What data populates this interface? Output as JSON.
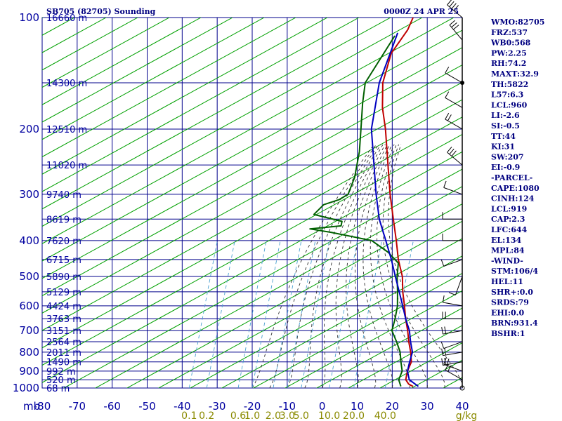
{
  "header": {
    "station": "SB705 (82705) Sounding",
    "datetime": "0000Z 24 APR 25"
  },
  "indices": [
    "WMO:82705",
    "FRZ:537",
    "WB0:568",
    "PW:2.25",
    "RH:74.2",
    "MAXT:32.9",
    "TH:5822",
    "L57:6.3",
    "LCL:960",
    "LI:-2.6",
    "SI:-0.5",
    "TT:44",
    "KI:31",
    "SW:207",
    "EI:-0.9",
    "-PARCEL-",
    "CAPE:1080",
    "CINH:124",
    "LCL:919",
    "CAP:2.3",
    "LFC:644",
    "EL:134",
    "MPL:84",
    "-WIND-",
    "STM:106/4",
    "HEL:11",
    "SHR+:0.0",
    "SRDS:79",
    "EHI:0.0",
    "BRN:931.4",
    "BSHR:1"
  ],
  "axis_labels": {
    "pressure_unit": "mb",
    "mixing_unit": "g/kg"
  },
  "colors": {
    "grid": "#00008b",
    "dry_adiabat": "#00a000",
    "moist_adiabat": "#303030",
    "mixing_ratio": "#4aa0d0",
    "temperature": "#c00000",
    "dewpoint": "#006000",
    "parcel": "#0000c0",
    "wind": "#000000",
    "mixing_label": "#8a8a00"
  },
  "chart_data": {
    "type": "line",
    "x_scale": "linear",
    "y_scale": "log",
    "xlim": [
      -80,
      40
    ],
    "ylim": [
      1000,
      100
    ],
    "xlabel": "",
    "ylabel": "",
    "pressure_ticks": [
      100,
      200,
      300,
      400,
      500,
      600,
      700,
      800,
      900,
      1000
    ],
    "temperature_ticks": [
      -80,
      -70,
      -60,
      -50,
      -40,
      -30,
      -20,
      -10,
      0,
      10,
      20,
      30,
      40
    ],
    "height_ticks": [
      {
        "p": 100,
        "label": "16660 m"
      },
      {
        "p": 150,
        "label": "14300 m"
      },
      {
        "p": 200,
        "label": "12510 m"
      },
      {
        "p": 250,
        "label": "11020 m"
      },
      {
        "p": 300,
        "label": "9740 m"
      },
      {
        "p": 350,
        "label": "8619 m"
      },
      {
        "p": 400,
        "label": "7620 m"
      },
      {
        "p": 450,
        "label": "6715 m"
      },
      {
        "p": 500,
        "label": "5890 m"
      },
      {
        "p": 550,
        "label": "5129 m"
      },
      {
        "p": 600,
        "label": "4424 m"
      },
      {
        "p": 650,
        "label": "3763 m"
      },
      {
        "p": 700,
        "label": "3151 m"
      },
      {
        "p": 750,
        "label": "2564 m"
      },
      {
        "p": 800,
        "label": "2011 m"
      },
      {
        "p": 850,
        "label": "1490 m"
      },
      {
        "p": 900,
        "label": "992 m"
      },
      {
        "p": 950,
        "label": "520 m"
      },
      {
        "p": 1000,
        "label": "68 m"
      }
    ],
    "mixing_ratio_labels": [
      {
        "x": -38,
        "label": "0.1"
      },
      {
        "x": -33,
        "label": "0.2"
      },
      {
        "x": -24,
        "label": "0.6"
      },
      {
        "x": -20,
        "label": "1.0"
      },
      {
        "x": -14,
        "label": "2.0"
      },
      {
        "x": -10,
        "label": "3.0"
      },
      {
        "x": -6,
        "label": "5.0"
      },
      {
        "x": 2,
        "label": "10.0"
      },
      {
        "x": 9,
        "label": "20.0"
      },
      {
        "x": 18,
        "label": "40.0"
      }
    ],
    "series": [
      {
        "name": "",
        "role": "temperature",
        "points": [
          [
            100,
            -80
          ],
          [
            108,
            -78
          ],
          [
            125,
            -76
          ],
          [
            150,
            -70
          ],
          [
            175,
            -63
          ],
          [
            200,
            -56
          ],
          [
            250,
            -45
          ],
          [
            300,
            -36
          ],
          [
            350,
            -28
          ],
          [
            400,
            -21
          ],
          [
            450,
            -15
          ],
          [
            500,
            -9
          ],
          [
            550,
            -4.5
          ],
          [
            600,
            0
          ],
          [
            650,
            4
          ],
          [
            700,
            8
          ],
          [
            750,
            11.5
          ],
          [
            800,
            15
          ],
          [
            850,
            18
          ],
          [
            900,
            19.5
          ],
          [
            925,
            20.5
          ],
          [
            950,
            21.5
          ],
          [
            975,
            23.5
          ],
          [
            990,
            25.5
          ]
        ]
      },
      {
        "name": "",
        "role": "dewpoint",
        "points": [
          [
            112,
            -80
          ],
          [
            150,
            -75
          ],
          [
            170,
            -70
          ],
          [
            200,
            -63
          ],
          [
            230,
            -57
          ],
          [
            270,
            -51
          ],
          [
            300,
            -48
          ],
          [
            310,
            -49
          ],
          [
            320,
            -52
          ],
          [
            340,
            -52
          ],
          [
            355,
            -42
          ],
          [
            365,
            -41
          ],
          [
            372,
            -49
          ],
          [
            380,
            -42
          ],
          [
            400,
            -28
          ],
          [
            430,
            -20
          ],
          [
            460,
            -14
          ],
          [
            500,
            -10.5
          ],
          [
            550,
            -6
          ],
          [
            600,
            -2
          ],
          [
            650,
            1
          ],
          [
            700,
            3.5
          ],
          [
            750,
            8
          ],
          [
            800,
            12
          ],
          [
            850,
            15
          ],
          [
            900,
            18
          ],
          [
            950,
            19.5
          ],
          [
            990,
            22
          ]
        ]
      },
      {
        "name": "",
        "role": "parcel",
        "points": [
          [
            110,
            -80
          ],
          [
            150,
            -71
          ],
          [
            200,
            -60
          ],
          [
            250,
            -49
          ],
          [
            300,
            -40
          ],
          [
            350,
            -32
          ],
          [
            400,
            -24
          ],
          [
            450,
            -17
          ],
          [
            500,
            -11
          ],
          [
            550,
            -5.5
          ],
          [
            600,
            -0.5
          ],
          [
            650,
            4
          ],
          [
            700,
            8.5
          ],
          [
            750,
            12
          ],
          [
            800,
            15.5
          ],
          [
            850,
            17.5
          ],
          [
            900,
            19.5
          ],
          [
            950,
            22.5
          ],
          [
            990,
            27
          ]
        ]
      }
    ],
    "wind_barbs": [
      {
        "p": 100,
        "dir": 310,
        "spd": 35
      },
      {
        "p": 115,
        "dir": 320,
        "spd": 25
      },
      {
        "p": 150,
        "dir": 300,
        "spd": 10
      },
      {
        "p": 175,
        "dir": 300,
        "spd": 10
      },
      {
        "p": 200,
        "dir": 300,
        "spd": 15
      },
      {
        "p": 250,
        "dir": 310,
        "spd": 25
      },
      {
        "p": 300,
        "dir": 290,
        "spd": 10
      },
      {
        "p": 350,
        "dir": 270,
        "spd": 5
      },
      {
        "p": 400,
        "dir": 270,
        "spd": 5
      },
      {
        "p": 450,
        "dir": 250,
        "spd": 5
      },
      {
        "p": 500,
        "dir": 200,
        "spd": 5
      },
      {
        "p": 600,
        "dir": 280,
        "spd": 10
      },
      {
        "p": 650,
        "dir": 270,
        "spd": 15
      },
      {
        "p": 700,
        "dir": 260,
        "spd": 20
      },
      {
        "p": 750,
        "dir": 250,
        "spd": 10
      },
      {
        "p": 800,
        "dir": 260,
        "spd": 15
      },
      {
        "p": 850,
        "dir": 260,
        "spd": 15
      },
      {
        "p": 900,
        "dir": 290,
        "spd": 20
      },
      {
        "p": 950,
        "dir": 300,
        "spd": 15
      },
      {
        "p": 1000,
        "dir": 0,
        "spd": 0
      }
    ]
  }
}
